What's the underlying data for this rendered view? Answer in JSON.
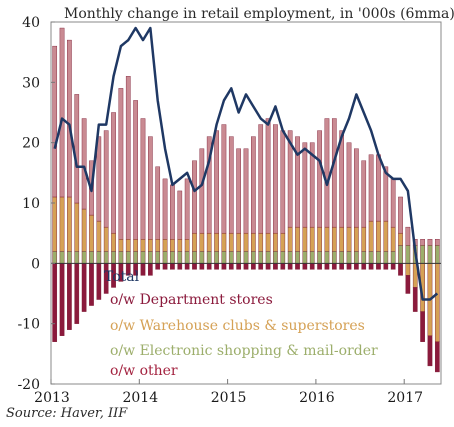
{
  "chart_data": {
    "type": "bar",
    "title": "Monthly change in retail employment, in '000s (6mma)",
    "ylim": [
      -20,
      40
    ],
    "yticks": [
      40,
      30,
      20,
      10,
      0,
      -10,
      -20
    ],
    "xtick_labels": [
      "2013",
      "2014",
      "2015",
      "2016",
      "2017"
    ],
    "grid": false,
    "legend_placement": "lower-left inside",
    "start_month": "2013-01",
    "months_count": 53,
    "series": [
      {
        "name": "o/w other",
        "color": "#c98a92",
        "values": [
          25,
          28,
          26,
          18,
          15,
          9,
          14,
          16,
          20,
          25,
          27,
          23,
          20,
          17,
          12,
          10,
          9,
          8,
          10,
          12,
          14,
          16,
          17,
          18,
          16,
          14,
          14,
          16,
          18,
          19,
          18,
          17,
          16,
          15,
          14,
          14,
          16,
          18,
          18,
          16,
          14,
          13,
          11,
          11,
          11,
          9,
          8,
          6,
          3,
          1,
          1,
          1,
          1
        ]
      },
      {
        "name": "o/w Department stores",
        "color": "#8b1a3c",
        "values": [
          -13,
          -12,
          -11,
          -10,
          -8,
          -7,
          -6,
          -5,
          -4,
          -3,
          -2,
          -2,
          -2,
          -2,
          -1,
          -1,
          -1,
          -1,
          -1,
          -1,
          -1,
          -1,
          -1,
          -1,
          -1,
          -1,
          -1,
          -1,
          -1,
          -1,
          -1,
          -1,
          -1,
          -1,
          -1,
          -1,
          -1,
          -1,
          -1,
          -1,
          -1,
          -1,
          -1,
          -1,
          -1,
          -1,
          -1,
          -2,
          -3,
          -4,
          -5,
          -5,
          -5
        ]
      },
      {
        "name": "o/w Warehouse clubs & superstores",
        "color": "#d5a155",
        "values": [
          9,
          9,
          9,
          8,
          7,
          6,
          5,
          4,
          3,
          2,
          2,
          2,
          2,
          2,
          2,
          2,
          2,
          2,
          2,
          3,
          3,
          3,
          3,
          3,
          3,
          3,
          3,
          3,
          3,
          3,
          3,
          3,
          4,
          4,
          4,
          4,
          4,
          4,
          4,
          4,
          4,
          4,
          4,
          5,
          5,
          5,
          4,
          2,
          -2,
          -4,
          -8,
          -12,
          -13
        ]
      },
      {
        "name": "o/w Electronic shopping & mail-order",
        "color": "#9cae6b",
        "values": [
          2,
          2,
          2,
          2,
          2,
          2,
          2,
          2,
          2,
          2,
          2,
          2,
          2,
          2,
          2,
          2,
          2,
          2,
          2,
          2,
          2,
          2,
          2,
          2,
          2,
          2,
          2,
          2,
          2,
          2,
          2,
          2,
          2,
          2,
          2,
          2,
          2,
          2,
          2,
          2,
          2,
          2,
          2,
          2,
          2,
          2,
          2,
          3,
          3,
          3,
          3,
          3,
          3
        ]
      },
      {
        "name": "Total",
        "color": "#1f3864",
        "line": true,
        "values": [
          19,
          24,
          23,
          16,
          16,
          12,
          23,
          23,
          31,
          36,
          37,
          39,
          37,
          39,
          27,
          19,
          13,
          14,
          15,
          12,
          13,
          17,
          23,
          27,
          29,
          25,
          28,
          26,
          24,
          23,
          26,
          22,
          20,
          18,
          19,
          18,
          17,
          13,
          17,
          21,
          24,
          28,
          25,
          22,
          18,
          15,
          14,
          14,
          12,
          2,
          -6,
          -6,
          -5
        ]
      }
    ]
  },
  "source_text": "Source:  Haver, IIF"
}
